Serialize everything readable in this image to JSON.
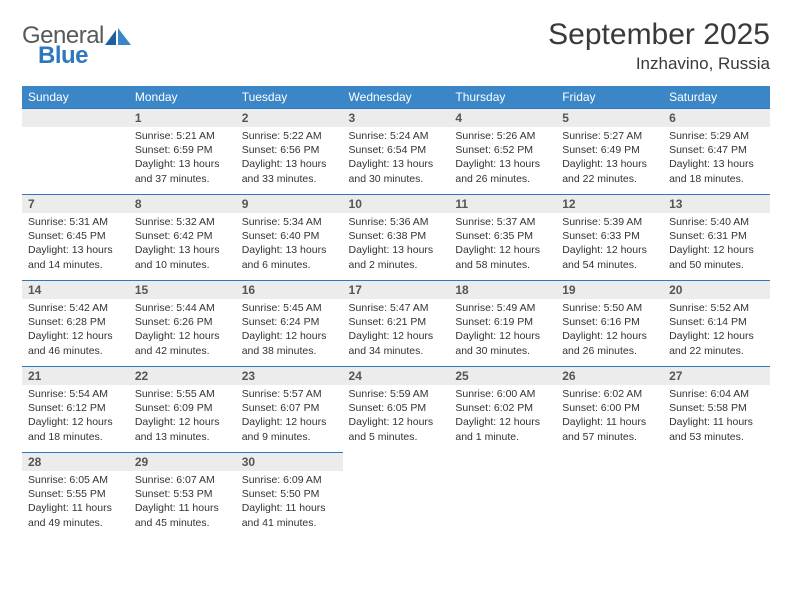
{
  "logo": {
    "word1": "General",
    "word2": "Blue"
  },
  "title": "September 2025",
  "location": "Inzhavino, Russia",
  "colors": {
    "header_bg": "#3b86c6",
    "header_text": "#ffffff",
    "border": "#2f78bd",
    "daynum_bg": "#ececec",
    "daynum_text": "#555555",
    "body_text": "#333333",
    "page_bg": "#ffffff",
    "logo_gray": "#58595b",
    "logo_blue": "#2f78bd"
  },
  "day_names": [
    "Sunday",
    "Monday",
    "Tuesday",
    "Wednesday",
    "Thursday",
    "Friday",
    "Saturday"
  ],
  "weeks": [
    [
      null,
      {
        "n": "1",
        "sr": "5:21 AM",
        "ss": "6:59 PM",
        "dl": "13 hours and 37 minutes."
      },
      {
        "n": "2",
        "sr": "5:22 AM",
        "ss": "6:56 PM",
        "dl": "13 hours and 33 minutes."
      },
      {
        "n": "3",
        "sr": "5:24 AM",
        "ss": "6:54 PM",
        "dl": "13 hours and 30 minutes."
      },
      {
        "n": "4",
        "sr": "5:26 AM",
        "ss": "6:52 PM",
        "dl": "13 hours and 26 minutes."
      },
      {
        "n": "5",
        "sr": "5:27 AM",
        "ss": "6:49 PM",
        "dl": "13 hours and 22 minutes."
      },
      {
        "n": "6",
        "sr": "5:29 AM",
        "ss": "6:47 PM",
        "dl": "13 hours and 18 minutes."
      }
    ],
    [
      {
        "n": "7",
        "sr": "5:31 AM",
        "ss": "6:45 PM",
        "dl": "13 hours and 14 minutes."
      },
      {
        "n": "8",
        "sr": "5:32 AM",
        "ss": "6:42 PM",
        "dl": "13 hours and 10 minutes."
      },
      {
        "n": "9",
        "sr": "5:34 AM",
        "ss": "6:40 PM",
        "dl": "13 hours and 6 minutes."
      },
      {
        "n": "10",
        "sr": "5:36 AM",
        "ss": "6:38 PM",
        "dl": "13 hours and 2 minutes."
      },
      {
        "n": "11",
        "sr": "5:37 AM",
        "ss": "6:35 PM",
        "dl": "12 hours and 58 minutes."
      },
      {
        "n": "12",
        "sr": "5:39 AM",
        "ss": "6:33 PM",
        "dl": "12 hours and 54 minutes."
      },
      {
        "n": "13",
        "sr": "5:40 AM",
        "ss": "6:31 PM",
        "dl": "12 hours and 50 minutes."
      }
    ],
    [
      {
        "n": "14",
        "sr": "5:42 AM",
        "ss": "6:28 PM",
        "dl": "12 hours and 46 minutes."
      },
      {
        "n": "15",
        "sr": "5:44 AM",
        "ss": "6:26 PM",
        "dl": "12 hours and 42 minutes."
      },
      {
        "n": "16",
        "sr": "5:45 AM",
        "ss": "6:24 PM",
        "dl": "12 hours and 38 minutes."
      },
      {
        "n": "17",
        "sr": "5:47 AM",
        "ss": "6:21 PM",
        "dl": "12 hours and 34 minutes."
      },
      {
        "n": "18",
        "sr": "5:49 AM",
        "ss": "6:19 PM",
        "dl": "12 hours and 30 minutes."
      },
      {
        "n": "19",
        "sr": "5:50 AM",
        "ss": "6:16 PM",
        "dl": "12 hours and 26 minutes."
      },
      {
        "n": "20",
        "sr": "5:52 AM",
        "ss": "6:14 PM",
        "dl": "12 hours and 22 minutes."
      }
    ],
    [
      {
        "n": "21",
        "sr": "5:54 AM",
        "ss": "6:12 PM",
        "dl": "12 hours and 18 minutes."
      },
      {
        "n": "22",
        "sr": "5:55 AM",
        "ss": "6:09 PM",
        "dl": "12 hours and 13 minutes."
      },
      {
        "n": "23",
        "sr": "5:57 AM",
        "ss": "6:07 PM",
        "dl": "12 hours and 9 minutes."
      },
      {
        "n": "24",
        "sr": "5:59 AM",
        "ss": "6:05 PM",
        "dl": "12 hours and 5 minutes."
      },
      {
        "n": "25",
        "sr": "6:00 AM",
        "ss": "6:02 PM",
        "dl": "12 hours and 1 minute."
      },
      {
        "n": "26",
        "sr": "6:02 AM",
        "ss": "6:00 PM",
        "dl": "11 hours and 57 minutes."
      },
      {
        "n": "27",
        "sr": "6:04 AM",
        "ss": "5:58 PM",
        "dl": "11 hours and 53 minutes."
      }
    ],
    [
      {
        "n": "28",
        "sr": "6:05 AM",
        "ss": "5:55 PM",
        "dl": "11 hours and 49 minutes."
      },
      {
        "n": "29",
        "sr": "6:07 AM",
        "ss": "5:53 PM",
        "dl": "11 hours and 45 minutes."
      },
      {
        "n": "30",
        "sr": "6:09 AM",
        "ss": "5:50 PM",
        "dl": "11 hours and 41 minutes."
      },
      null,
      null,
      null,
      null
    ]
  ],
  "labels": {
    "sunrise": "Sunrise:",
    "sunset": "Sunset:",
    "daylight": "Daylight:"
  }
}
